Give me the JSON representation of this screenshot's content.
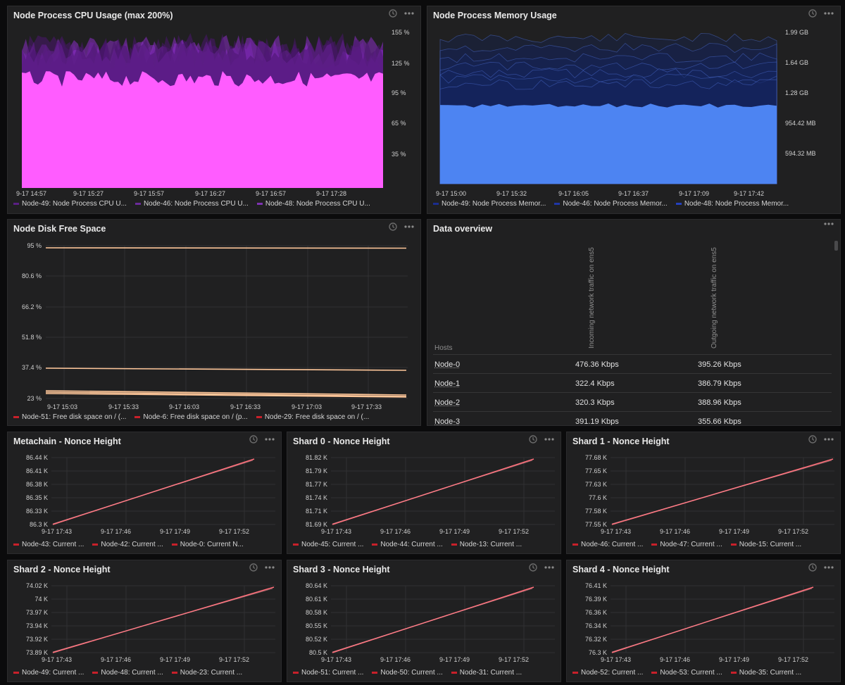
{
  "panels": {
    "cpu": {
      "title": "Node Process CPU Usage (max 200%)",
      "yticks": [
        "155 %",
        "125 %",
        "95 %",
        "65 %",
        "35 %"
      ],
      "xticks": [
        "9-17 14:57",
        "9-17 15:27",
        "9-17 15:57",
        "9-17 16:27",
        "9-17 16:57",
        "9-17 17:28"
      ],
      "legend": [
        {
          "label": "Node-49: Node Process CPU U...",
          "color": "#5a1f84"
        },
        {
          "label": "Node-46: Node Process CPU U...",
          "color": "#6a2a9a"
        },
        {
          "label": "Node-48: Node Process CPU U...",
          "color": "#7e32b3"
        }
      ],
      "colors": {
        "fill": "#ff5cff",
        "noise_dark": "#4b1670",
        "noise_mid": "#8a2ec6"
      }
    },
    "memory": {
      "title": "Node Process Memory Usage",
      "yticks": [
        "1.99 GB",
        "1.64 GB",
        "1.28 GB",
        "954.42 MB",
        "594.32 MB"
      ],
      "xticks": [
        "9-17 15:00",
        "9-17 15:32",
        "9-17 16:05",
        "9-17 16:37",
        "9-17 17:09",
        "9-17 17:42"
      ],
      "legend": [
        {
          "label": "Node-49: Node Process Memor...",
          "color": "#1a2d8f"
        },
        {
          "label": "Node-46: Node Process Memor...",
          "color": "#1f36a6"
        },
        {
          "label": "Node-48: Node Process Memor...",
          "color": "#2440bf"
        }
      ],
      "colors": {
        "fill": "#4d84f2",
        "dark": "#14245c"
      }
    },
    "disk": {
      "title": "Node Disk Free Space",
      "yticks": [
        "95 %",
        "80.6 %",
        "66.2 %",
        "51.8 %",
        "37.4 %",
        "23 %"
      ],
      "xticks": [
        "9-17 15:03",
        "9-17 15:33",
        "9-17 16:03",
        "9-17 16:33",
        "9-17 17:03",
        "9-17 17:33"
      ],
      "legend": [
        {
          "label": "Node-51: Free disk space on / (...",
          "color": "#c8202a"
        },
        {
          "label": "Node-6: Free disk space on / (p...",
          "color": "#c8202a"
        },
        {
          "label": "Node-29: Free disk space on / (...",
          "color": "#c8202a"
        }
      ],
      "line_color": "#ffc79a"
    },
    "overview": {
      "title": "Data overview",
      "hosts_header": "Hosts",
      "col1_header": "Incoming network traffic on ens5",
      "col2_header": "Outgoing network traffic on ens5",
      "rows": [
        {
          "host": "Node-0",
          "in": "476.36 Kbps",
          "out": "395.26 Kbps"
        },
        {
          "host": "Node-1",
          "in": "322.4 Kbps",
          "out": "386.79 Kbps"
        },
        {
          "host": "Node-2",
          "in": "320.3 Kbps",
          "out": "388.96 Kbps"
        },
        {
          "host": "Node-3",
          "in": "391.19 Kbps",
          "out": "355.66 Kbps"
        }
      ]
    },
    "metachain": {
      "title": "Metachain - Nonce Height",
      "yticks": [
        "86.44 K",
        "86.41 K",
        "86.38 K",
        "86.35 K",
        "86.33 K",
        "86.3 K"
      ],
      "xticks": [
        "9-17 17:43",
        "9-17 17:46",
        "9-17 17:49",
        "9-17 17:52"
      ],
      "legend": [
        {
          "label": "Node-43: Current ...",
          "color": "#c8202a"
        },
        {
          "label": "Node-42: Current ...",
          "color": "#c8202a"
        },
        {
          "label": "Node-0: Current N...",
          "color": "#c8202a"
        }
      ]
    },
    "shard0": {
      "title": "Shard 0 - Nonce Height",
      "yticks": [
        "81.82 K",
        "81.79 K",
        "81.77 K",
        "81.74 K",
        "81.71 K",
        "81.69 K"
      ],
      "xticks": [
        "9-17 17:43",
        "9-17 17:46",
        "9-17 17:49",
        "9-17 17:52"
      ],
      "legend": [
        {
          "label": "Node-45: Current ...",
          "color": "#c8202a"
        },
        {
          "label": "Node-44: Current ...",
          "color": "#c8202a"
        },
        {
          "label": "Node-13: Current ...",
          "color": "#c8202a"
        }
      ]
    },
    "shard1": {
      "title": "Shard 1 - Nonce Height",
      "yticks": [
        "77.68 K",
        "77.65 K",
        "77.63 K",
        "77.6 K",
        "77.58 K",
        "77.55 K"
      ],
      "xticks": [
        "9-17 17:43",
        "9-17 17:46",
        "9-17 17:49",
        "9-17 17:52"
      ],
      "legend": [
        {
          "label": "Node-46: Current ...",
          "color": "#c8202a"
        },
        {
          "label": "Node-47: Current ...",
          "color": "#c8202a"
        },
        {
          "label": "Node-15: Current ...",
          "color": "#c8202a"
        }
      ]
    },
    "shard2": {
      "title": "Shard 2 - Nonce Height",
      "yticks": [
        "74.02 K",
        "74 K",
        "73.97 K",
        "73.94 K",
        "73.92 K",
        "73.89 K"
      ],
      "xticks": [
        "9-17 17:43",
        "9-17 17:46",
        "9-17 17:49",
        "9-17 17:52"
      ],
      "legend": [
        {
          "label": "Node-49: Current ...",
          "color": "#c8202a"
        },
        {
          "label": "Node-48: Current ...",
          "color": "#c8202a"
        },
        {
          "label": "Node-23: Current ...",
          "color": "#c8202a"
        }
      ]
    },
    "shard3": {
      "title": "Shard 3 - Nonce Height",
      "yticks": [
        "80.64 K",
        "80.61 K",
        "80.58 K",
        "80.55 K",
        "80.52 K",
        "80.5 K"
      ],
      "xticks": [
        "9-17 17:43",
        "9-17 17:46",
        "9-17 17:49",
        "9-17 17:52"
      ],
      "legend": [
        {
          "label": "Node-51: Current ...",
          "color": "#c8202a"
        },
        {
          "label": "Node-50: Current ...",
          "color": "#c8202a"
        },
        {
          "label": "Node-31: Current ...",
          "color": "#c8202a"
        }
      ]
    },
    "shard4": {
      "title": "Shard 4 - Nonce Height",
      "yticks": [
        "76.41 K",
        "76.39 K",
        "76.36 K",
        "76.34 K",
        "76.32 K",
        "76.3 K"
      ],
      "xticks": [
        "9-17 17:43",
        "9-17 17:46",
        "9-17 17:49",
        "9-17 17:52"
      ],
      "legend": [
        {
          "label": "Node-52: Current ...",
          "color": "#c8202a"
        },
        {
          "label": "Node-53: Current ...",
          "color": "#c8202a"
        },
        {
          "label": "Node-35: Current ...",
          "color": "#c8202a"
        }
      ]
    }
  },
  "icons": {
    "history": "history-icon",
    "more": "more-icon"
  },
  "nonce_line_color": "#ff6f7a"
}
